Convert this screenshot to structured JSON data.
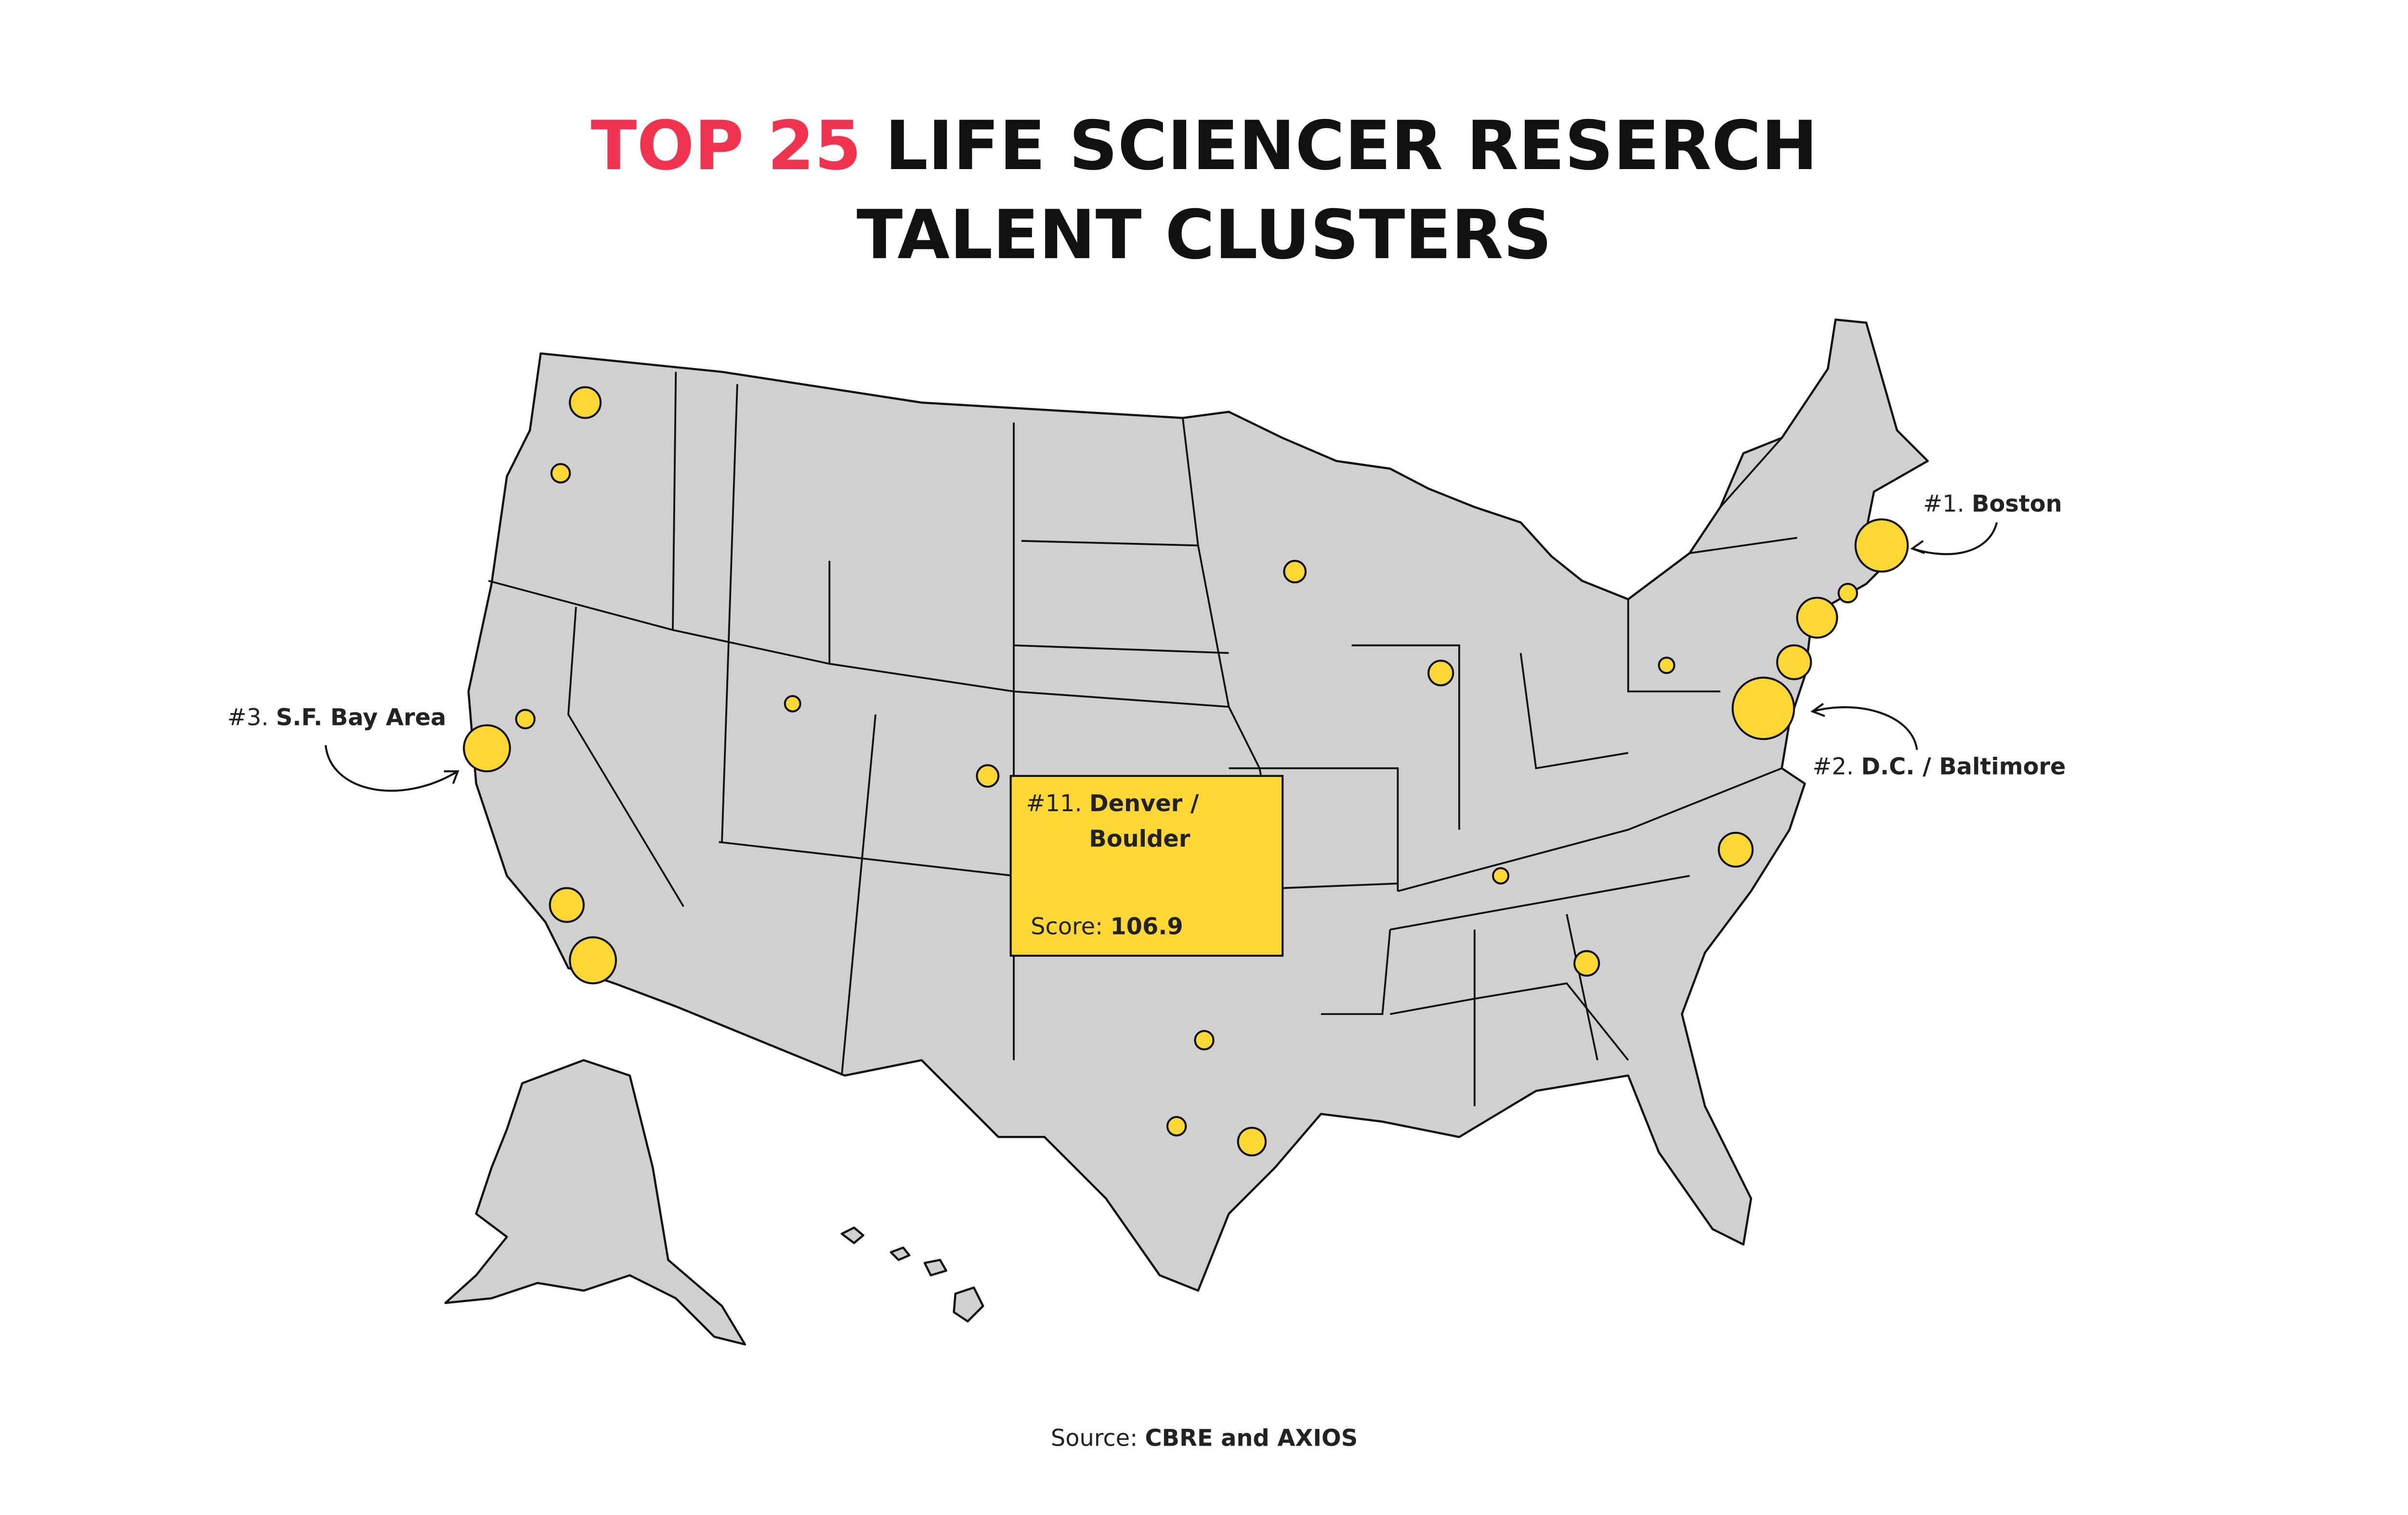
{
  "title": {
    "highlight": "TOP 25",
    "line1": "LIFE SCIENCER RESERCH",
    "line2": "TALENT CLUSTERS"
  },
  "callouts": [
    {
      "rank": "#1.",
      "name": "Boston"
    },
    {
      "rank": "#2.",
      "name": "D.C. / Baltimore"
    },
    {
      "rank": "#3.",
      "name": "S.F. Bay Area"
    }
  ],
  "tooltip": {
    "rank": "#11.",
    "name_lines": [
      "Denver /",
      "Boulder"
    ],
    "score_label": "Score:",
    "score": 106.9
  },
  "source": {
    "label": "Source:",
    "value": "CBRE and AXIOS"
  }
}
